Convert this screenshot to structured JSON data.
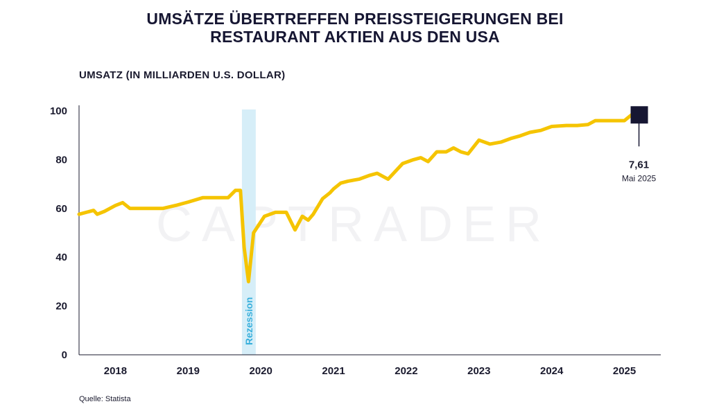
{
  "title_line1": "UMSÄTZE ÜBERTREFFEN PREISSTEIGERUNGEN BEI",
  "title_line2": "RESTAURANT AKTIEN AUS DEN USA",
  "source": "Quelle: Statista",
  "watermark": "CAPTRADER",
  "colors": {
    "line": "#f5c400",
    "recession": "#d6eef8",
    "recession_text": "#3ab0dc",
    "marker": "#161632",
    "text": "#1a1a2e"
  },
  "chart_data": {
    "type": "line",
    "title": "UMSÄTZE ÜBERTREFFEN PREISSTEIGERUNGEN BEI RESTAURANT AKTIEN AUS DEN USA",
    "ylabel": "UMSATZ (IN MILLIARDEN U.S. DOLLAR)",
    "xlabel": "",
    "xlim": [
      2017.5,
      2025.5
    ],
    "ylim": [
      0,
      100
    ],
    "x_ticks": [
      {
        "value": 2018,
        "label": "2018"
      },
      {
        "value": 2019,
        "label": "2019"
      },
      {
        "value": 2020,
        "label": "2020"
      },
      {
        "value": 2021,
        "label": "2021"
      },
      {
        "value": 2022,
        "label": "2022"
      },
      {
        "value": 2023,
        "label": "2023"
      },
      {
        "value": 2024,
        "label": "2024"
      },
      {
        "value": 2025,
        "label": "2025"
      }
    ],
    "y_ticks": [
      {
        "value": 0,
        "label": "0"
      },
      {
        "value": 20,
        "label": "20"
      },
      {
        "value": 40,
        "label": "40"
      },
      {
        "value": 60,
        "label": "60"
      },
      {
        "value": 80,
        "label": "80"
      },
      {
        "value": 100,
        "label": "100"
      }
    ],
    "grid": false,
    "recession": {
      "start": 2019.74,
      "end": 2019.93,
      "label": "Rezession"
    },
    "annotation": {
      "x": 2025.2,
      "y": 98.5,
      "value_label": "7,61",
      "date_label": "Mai 2025"
    },
    "series": [
      {
        "x": [
          2017.5,
          2017.7,
          2017.75,
          2017.85,
          2018.0,
          2018.1,
          2018.2,
          2018.35,
          2018.5,
          2018.65,
          2018.85,
          2019.0,
          2019.2,
          2019.38,
          2019.55,
          2019.65,
          2019.72,
          2019.77,
          2019.83,
          2019.9,
          2020.05,
          2020.2,
          2020.35,
          2020.47,
          2020.57,
          2020.65,
          2020.72,
          2020.85,
          2020.95,
          2021.0,
          2021.1,
          2021.2,
          2021.35,
          2021.5,
          2021.6,
          2021.75,
          2021.95,
          2022.1,
          2022.2,
          2022.3,
          2022.42,
          2022.55,
          2022.65,
          2022.75,
          2022.85,
          2023.0,
          2023.15,
          2023.3,
          2023.45,
          2023.55,
          2023.7,
          2023.85,
          2024.0,
          2024.2,
          2024.35,
          2024.5,
          2024.6,
          2024.75,
          2024.9,
          2025.0,
          2025.1,
          2025.15
        ],
        "y": [
          57.6,
          59.2,
          57.6,
          58.8,
          61.2,
          62.4,
          60.0,
          60.0,
          60.0,
          60.0,
          61.4,
          62.6,
          64.4,
          64.4,
          64.4,
          67.4,
          67.4,
          44.0,
          30.0,
          50.0,
          56.8,
          58.4,
          58.4,
          51.2,
          56.8,
          55.2,
          57.6,
          64.0,
          66.4,
          68.0,
          70.4,
          71.2,
          72.0,
          73.6,
          74.4,
          72.0,
          78.4,
          80.0,
          80.8,
          79.2,
          83.2,
          83.2,
          84.8,
          83.2,
          82.4,
          88.0,
          86.4,
          87.2,
          88.8,
          89.6,
          91.2,
          92.0,
          93.6,
          94.0,
          94.0,
          94.4,
          96.0,
          96.0,
          96.0,
          96.0,
          98.4,
          98.4
        ]
      }
    ]
  }
}
